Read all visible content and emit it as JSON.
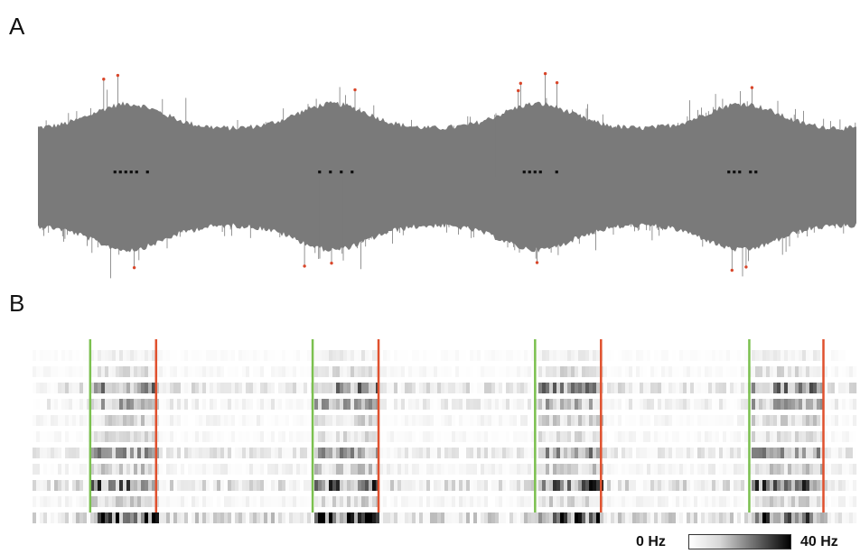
{
  "figure": {
    "panels": [
      {
        "label": "A"
      },
      {
        "label": "B"
      }
    ],
    "colorbar": {
      "min_label": "0 Hz",
      "max_label": "40 Hz",
      "range": [
        0,
        40
      ]
    }
  },
  "colors": {
    "trace": "#7a7a7a",
    "peak_marker": "#d9462a",
    "burst_marker": "#111111",
    "onset_line": "#7bc04f",
    "offset_line": "#e0512e"
  },
  "chart_data": [
    {
      "type": "line",
      "description_key": "A",
      "title": "",
      "xlabel": "",
      "ylabel": "",
      "x_range": [
        0,
        100
      ],
      "series": [
        {
          "envelope_amplitude_peaks_at": [
            11,
            36,
            61,
            86
          ],
          "burst_count": 4
        }
      ],
      "grid": false
    },
    {
      "type": "heatmap",
      "description_key": "B",
      "title": "",
      "xlabel": "",
      "ylabel": "",
      "rows": 11,
      "x_range": [
        0,
        100
      ],
      "value_range": [
        0,
        40
      ],
      "onsets": [
        7,
        34,
        61,
        87
      ],
      "offsets": [
        15,
        42,
        69,
        96
      ],
      "grid": false
    }
  ]
}
